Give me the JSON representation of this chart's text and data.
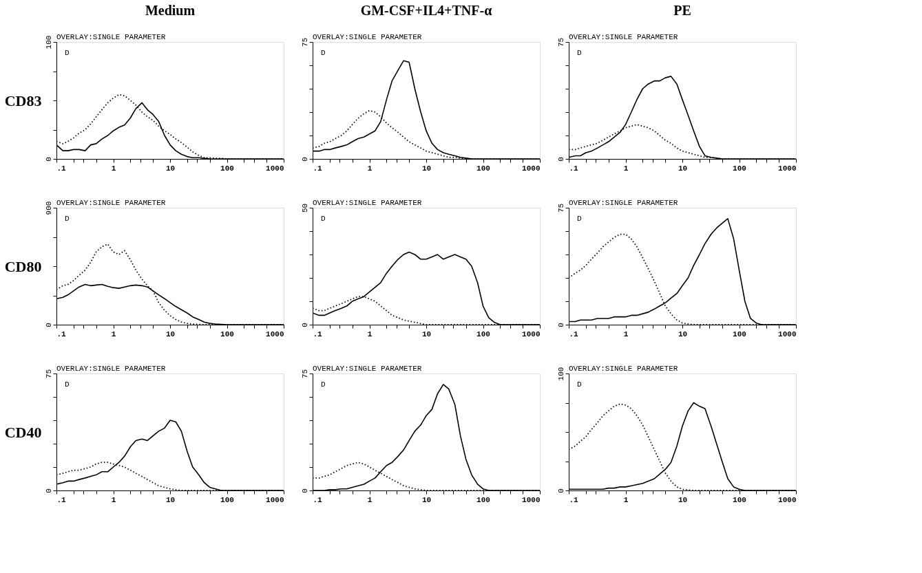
{
  "chart_data": [
    {
      "type": "line",
      "title": "Medium",
      "subtitle": "OVERLAY:SINGLE PARAMETER",
      "ylabel": "CD83",
      "annotations": [
        "D"
      ],
      "log": "x",
      "grid": false,
      "x": [
        0.1,
        0.13,
        0.16,
        0.2,
        0.25,
        0.32,
        0.4,
        0.5,
        0.63,
        0.8,
        1,
        1.26,
        1.58,
        2,
        2.5,
        3.2,
        4,
        5,
        6.3,
        8,
        10,
        12.6,
        15.8,
        20,
        25,
        32,
        40,
        50,
        63,
        80,
        100,
        126,
        158,
        200,
        250,
        320,
        400,
        500,
        630,
        800,
        1000
      ],
      "xlim": [
        0.1,
        1000
      ],
      "xticks": [
        {
          "value": 0.1,
          "label": ".1"
        },
        {
          "value": 0.2,
          "label": null
        },
        {
          "value": 0.3,
          "label": null
        },
        {
          "value": 0.5,
          "label": null
        },
        1,
        {
          "value": 2,
          "label": null
        },
        {
          "value": 3,
          "label": null
        },
        {
          "value": 5,
          "label": null
        },
        10,
        {
          "value": 20,
          "label": null
        },
        {
          "value": 30,
          "label": null
        },
        {
          "value": 50,
          "label": null
        },
        100,
        {
          "value": 200,
          "label": null
        },
        {
          "value": 300,
          "label": null
        },
        {
          "value": 500,
          "label": null
        },
        1000
      ],
      "ylim": [
        0,
        100
      ],
      "yticks": [
        0,
        {
          "value": 25,
          "label": null
        },
        {
          "value": 50,
          "label": null
        },
        {
          "value": 75,
          "label": null
        },
        100
      ],
      "series": [
        {
          "color": "#000000",
          "line_style": "solid",
          "values": [
            12,
            7,
            7,
            8,
            8,
            7,
            12,
            13,
            17,
            20,
            24,
            27,
            29,
            35,
            43,
            48,
            42,
            38,
            32,
            20,
            12,
            7,
            4,
            2,
            1,
            1,
            0.5,
            0,
            0,
            0,
            0,
            0,
            0,
            0,
            0,
            0,
            0,
            0,
            0,
            0,
            0
          ]
        },
        {
          "color": "#000000",
          "line_style": "dotted",
          "values": [
            15,
            13,
            15,
            18,
            22,
            25,
            30,
            36,
            42,
            48,
            52,
            55,
            54,
            50,
            46,
            40,
            36,
            33,
            28,
            24,
            21,
            17,
            14,
            10,
            6,
            3,
            1,
            1,
            0.5,
            0.5,
            0,
            0,
            0,
            0,
            0,
            0,
            0,
            0,
            0,
            0,
            0
          ]
        }
      ]
    },
    {
      "type": "line",
      "title": "GM-CSF+IL4+TNF-α",
      "subtitle": "OVERLAY:SINGLE PARAMETER",
      "annotations": [
        "D"
      ],
      "log": "x",
      "grid": false,
      "x": [
        0.1,
        0.13,
        0.16,
        0.2,
        0.25,
        0.32,
        0.4,
        0.5,
        0.63,
        0.8,
        1,
        1.26,
        1.58,
        2,
        2.5,
        3.2,
        4,
        5,
        6.3,
        8,
        10,
        12.6,
        15.8,
        20,
        25,
        32,
        40,
        50,
        63,
        80,
        100,
        126,
        158,
        200,
        250,
        320,
        400,
        500,
        630,
        800,
        1000
      ],
      "xlim": [
        0.1,
        1000
      ],
      "xticks": [
        {
          "value": 0.1,
          "label": ".1"
        },
        {
          "value": 0.2,
          "label": null
        },
        {
          "value": 0.3,
          "label": null
        },
        {
          "value": 0.5,
          "label": null
        },
        1,
        {
          "value": 2,
          "label": null
        },
        {
          "value": 3,
          "label": null
        },
        {
          "value": 5,
          "label": null
        },
        10,
        {
          "value": 20,
          "label": null
        },
        {
          "value": 30,
          "label": null
        },
        {
          "value": 50,
          "label": null
        },
        100,
        {
          "value": 200,
          "label": null
        },
        {
          "value": 300,
          "label": null
        },
        {
          "value": 500,
          "label": null
        },
        1000
      ],
      "ylim": [
        0,
        75
      ],
      "yticks": [
        0,
        {
          "value": 15,
          "label": null
        },
        {
          "value": 30,
          "label": null
        },
        {
          "value": 45,
          "label": null
        },
        {
          "value": 60,
          "label": null
        },
        75
      ],
      "series": [
        {
          "color": "#000000",
          "line_style": "solid",
          "values": [
            5,
            5,
            6,
            6,
            7,
            8,
            9,
            11,
            13,
            14,
            16,
            18,
            24,
            38,
            50,
            57,
            63,
            62,
            45,
            30,
            18,
            10,
            6,
            4,
            3,
            2,
            1,
            0.5,
            0,
            0,
            0,
            0,
            0,
            0,
            0,
            0,
            0,
            0,
            0,
            0,
            0
          ]
        },
        {
          "color": "#000000",
          "line_style": "dotted",
          "values": [
            7,
            8,
            10,
            11,
            13,
            15,
            18,
            22,
            26,
            29,
            31,
            30,
            27,
            23,
            20,
            17,
            14,
            11,
            9,
            7,
            5,
            4,
            3,
            2,
            1,
            1,
            0.5,
            0,
            0,
            0,
            0,
            0,
            0,
            0,
            0,
            0,
            0,
            0,
            0,
            0,
            0
          ]
        }
      ]
    },
    {
      "type": "line",
      "title": "PE",
      "subtitle": "OVERLAY:SINGLE PARAMETER",
      "annotations": [
        "D"
      ],
      "log": "x",
      "grid": false,
      "x": [
        0.1,
        0.13,
        0.16,
        0.2,
        0.25,
        0.32,
        0.4,
        0.5,
        0.63,
        0.8,
        1,
        1.26,
        1.58,
        2,
        2.5,
        3.2,
        4,
        5,
        6.3,
        8,
        10,
        12.6,
        15.8,
        20,
        25,
        32,
        40,
        50,
        63,
        80,
        100,
        126,
        158,
        200,
        250,
        320,
        400,
        500,
        630,
        800,
        1000
      ],
      "xlim": [
        0.1,
        1000
      ],
      "xticks": [
        {
          "value": 0.1,
          "label": ".1"
        },
        {
          "value": 0.2,
          "label": null
        },
        {
          "value": 0.3,
          "label": null
        },
        {
          "value": 0.5,
          "label": null
        },
        1,
        {
          "value": 2,
          "label": null
        },
        {
          "value": 3,
          "label": null
        },
        {
          "value": 5,
          "label": null
        },
        10,
        {
          "value": 20,
          "label": null
        },
        {
          "value": 30,
          "label": null
        },
        {
          "value": 50,
          "label": null
        },
        100,
        {
          "value": 200,
          "label": null
        },
        {
          "value": 300,
          "label": null
        },
        {
          "value": 500,
          "label": null
        },
        1000
      ],
      "ylim": [
        0,
        75
      ],
      "yticks": [
        0,
        {
          "value": 15,
          "label": null
        },
        {
          "value": 30,
          "label": null
        },
        {
          "value": 45,
          "label": null
        },
        {
          "value": 60,
          "label": null
        },
        75
      ],
      "series": [
        {
          "color": "#000000",
          "line_style": "solid",
          "values": [
            1,
            2,
            2,
            4,
            5,
            7,
            9,
            11,
            14,
            17,
            22,
            30,
            38,
            45,
            48,
            50,
            50,
            52,
            53,
            48,
            38,
            28,
            18,
            8,
            2,
            1,
            0.5,
            0,
            0,
            0,
            0,
            0,
            0,
            0,
            0,
            0,
            0,
            0,
            0,
            0,
            0
          ]
        },
        {
          "color": "#000000",
          "line_style": "dotted",
          "values": [
            6,
            6,
            7,
            8,
            9,
            10,
            12,
            14,
            16,
            18,
            20,
            21,
            22,
            21,
            20,
            18,
            15,
            12,
            10,
            7,
            5,
            4,
            3,
            2,
            1,
            1,
            0.5,
            0,
            0,
            0,
            0,
            0,
            0,
            0,
            0,
            0,
            0,
            0,
            0,
            0,
            0
          ]
        }
      ]
    },
    {
      "type": "line",
      "subtitle": "OVERLAY:SINGLE PARAMETER",
      "ylabel": "CD80",
      "annotations": [
        "D"
      ],
      "log": "x",
      "grid": false,
      "x": [
        0.1,
        0.13,
        0.16,
        0.2,
        0.25,
        0.32,
        0.4,
        0.5,
        0.63,
        0.8,
        1,
        1.26,
        1.58,
        2,
        2.5,
        3.2,
        4,
        5,
        6.3,
        8,
        10,
        12.6,
        15.8,
        20,
        25,
        32,
        40,
        50,
        63,
        80,
        100,
        126,
        158,
        200,
        250,
        320,
        400,
        500,
        630,
        800,
        1000
      ],
      "xlim": [
        0.1,
        1000
      ],
      "xticks": [
        {
          "value": 0.1,
          "label": ".1"
        },
        {
          "value": 0.2,
          "label": null
        },
        {
          "value": 0.3,
          "label": null
        },
        {
          "value": 0.5,
          "label": null
        },
        1,
        {
          "value": 2,
          "label": null
        },
        {
          "value": 3,
          "label": null
        },
        {
          "value": 5,
          "label": null
        },
        10,
        {
          "value": 20,
          "label": null
        },
        {
          "value": 30,
          "label": null
        },
        {
          "value": 50,
          "label": null
        },
        100,
        {
          "value": 200,
          "label": null
        },
        {
          "value": 300,
          "label": null
        },
        {
          "value": 500,
          "label": null
        },
        1000
      ],
      "ylim": [
        0,
        900
      ],
      "yticks": [
        0,
        {
          "value": 225,
          "label": null
        },
        {
          "value": 450,
          "label": null
        },
        {
          "value": 675,
          "label": null
        },
        900
      ],
      "series": [
        {
          "color": "#000000",
          "line_style": "solid",
          "values": [
            200,
            210,
            230,
            260,
            290,
            310,
            300,
            305,
            310,
            295,
            285,
            280,
            290,
            300,
            305,
            300,
            290,
            260,
            230,
            200,
            170,
            140,
            115,
            90,
            60,
            40,
            20,
            10,
            5,
            2,
            0,
            0,
            0,
            0,
            0,
            0,
            0,
            0,
            0,
            0,
            0
          ]
        },
        {
          "color": "#000000",
          "line_style": "dotted",
          "values": [
            270,
            300,
            310,
            340,
            380,
            420,
            480,
            560,
            600,
            620,
            560,
            540,
            570,
            500,
            420,
            350,
            300,
            260,
            170,
            110,
            70,
            40,
            20,
            10,
            5,
            2,
            0,
            0,
            0,
            0,
            0,
            0,
            0,
            0,
            0,
            0,
            0,
            0,
            0,
            0,
            0
          ]
        }
      ]
    },
    {
      "type": "line",
      "subtitle": "OVERLAY:SINGLE PARAMETER",
      "annotations": [
        "D"
      ],
      "log": "x",
      "grid": false,
      "x": [
        0.1,
        0.13,
        0.16,
        0.2,
        0.25,
        0.32,
        0.4,
        0.5,
        0.63,
        0.8,
        1,
        1.26,
        1.58,
        2,
        2.5,
        3.2,
        4,
        5,
        6.3,
        8,
        10,
        12.6,
        15.8,
        20,
        25,
        32,
        40,
        50,
        63,
        80,
        100,
        126,
        158,
        200,
        250,
        320,
        400,
        500,
        630,
        800,
        1000
      ],
      "xlim": [
        0.1,
        1000
      ],
      "xticks": [
        {
          "value": 0.1,
          "label": ".1"
        },
        {
          "value": 0.2,
          "label": null
        },
        {
          "value": 0.3,
          "label": null
        },
        {
          "value": 0.5,
          "label": null
        },
        1,
        {
          "value": 2,
          "label": null
        },
        {
          "value": 3,
          "label": null
        },
        {
          "value": 5,
          "label": null
        },
        10,
        {
          "value": 20,
          "label": null
        },
        {
          "value": 30,
          "label": null
        },
        {
          "value": 50,
          "label": null
        },
        100,
        {
          "value": 200,
          "label": null
        },
        {
          "value": 300,
          "label": null
        },
        {
          "value": 500,
          "label": null
        },
        1000
      ],
      "ylim": [
        0,
        50
      ],
      "yticks": [
        0,
        {
          "value": 10,
          "label": null
        },
        {
          "value": 20,
          "label": null
        },
        {
          "value": 30,
          "label": null
        },
        {
          "value": 40,
          "label": null
        },
        50
      ],
      "series": [
        {
          "color": "#000000",
          "line_style": "solid",
          "values": [
            5,
            4,
            4,
            5,
            6,
            7,
            8,
            10,
            11,
            12,
            14,
            16,
            18,
            22,
            25,
            28,
            30,
            31,
            30,
            28,
            28,
            29,
            30,
            28,
            29,
            30,
            29,
            28,
            25,
            18,
            8,
            3,
            1,
            0,
            0,
            0,
            0,
            0,
            0,
            0,
            0
          ]
        },
        {
          "color": "#000000",
          "line_style": "dotted",
          "values": [
            7,
            6,
            6,
            7,
            8,
            9,
            10,
            11,
            12,
            12,
            11,
            10,
            8,
            6,
            4,
            3,
            2,
            1.5,
            1,
            0.5,
            0,
            0,
            0,
            0,
            0,
            0,
            0,
            0,
            0,
            0,
            0,
            0,
            0,
            0,
            0,
            0,
            0,
            0,
            0,
            0,
            0
          ]
        }
      ]
    },
    {
      "type": "line",
      "subtitle": "OVERLAY:SINGLE PARAMETER",
      "annotations": [
        "D"
      ],
      "log": "x",
      "grid": false,
      "x": [
        0.1,
        0.13,
        0.16,
        0.2,
        0.25,
        0.32,
        0.4,
        0.5,
        0.63,
        0.8,
        1,
        1.26,
        1.58,
        2,
        2.5,
        3.2,
        4,
        5,
        6.3,
        8,
        10,
        12.6,
        15.8,
        20,
        25,
        32,
        40,
        50,
        63,
        80,
        100,
        126,
        158,
        200,
        250,
        320,
        400,
        500,
        630,
        800,
        1000
      ],
      "xlim": [
        0.1,
        1000
      ],
      "xticks": [
        {
          "value": 0.1,
          "label": ".1"
        },
        {
          "value": 0.2,
          "label": null
        },
        {
          "value": 0.3,
          "label": null
        },
        {
          "value": 0.5,
          "label": null
        },
        1,
        {
          "value": 2,
          "label": null
        },
        {
          "value": 3,
          "label": null
        },
        {
          "value": 5,
          "label": null
        },
        10,
        {
          "value": 20,
          "label": null
        },
        {
          "value": 30,
          "label": null
        },
        {
          "value": 50,
          "label": null
        },
        100,
        {
          "value": 200,
          "label": null
        },
        {
          "value": 300,
          "label": null
        },
        {
          "value": 500,
          "label": null
        },
        1000
      ],
      "ylim": [
        0,
        75
      ],
      "yticks": [
        0,
        {
          "value": 15,
          "label": null
        },
        {
          "value": 30,
          "label": null
        },
        {
          "value": 45,
          "label": null
        },
        {
          "value": 60,
          "label": null
        },
        75
      ],
      "series": [
        {
          "color": "#000000",
          "line_style": "solid",
          "values": [
            2,
            2,
            3,
            3,
            3,
            4,
            4,
            4,
            5,
            5,
            5,
            6,
            6,
            7,
            8,
            10,
            12,
            14,
            17,
            20,
            25,
            30,
            38,
            45,
            52,
            58,
            62,
            65,
            68,
            55,
            35,
            15,
            4,
            1,
            0,
            0,
            0,
            0,
            0,
            0,
            0
          ]
        },
        {
          "color": "#000000",
          "line_style": "dotted",
          "values": [
            30,
            33,
            35,
            38,
            42,
            46,
            50,
            53,
            56,
            58,
            58,
            55,
            50,
            43,
            36,
            28,
            20,
            12,
            7,
            3,
            1,
            0.5,
            0,
            0,
            0,
            0,
            0,
            0,
            0,
            0,
            0,
            0,
            0,
            0,
            0,
            0,
            0,
            0,
            0,
            0,
            0
          ]
        }
      ]
    },
    {
      "type": "line",
      "subtitle": "OVERLAY:SINGLE PARAMETER",
      "ylabel": "CD40",
      "annotations": [
        "D"
      ],
      "log": "x",
      "grid": false,
      "x": [
        0.1,
        0.13,
        0.16,
        0.2,
        0.25,
        0.32,
        0.4,
        0.5,
        0.63,
        0.8,
        1,
        1.26,
        1.58,
        2,
        2.5,
        3.2,
        4,
        5,
        6.3,
        8,
        10,
        12.6,
        15.8,
        20,
        25,
        32,
        40,
        50,
        63,
        80,
        100,
        126,
        158,
        200,
        250,
        320,
        400,
        500,
        630,
        800,
        1000
      ],
      "xlim": [
        0.1,
        1000
      ],
      "xticks": [
        {
          "value": 0.1,
          "label": ".1"
        },
        {
          "value": 0.2,
          "label": null
        },
        {
          "value": 0.3,
          "label": null
        },
        {
          "value": 0.5,
          "label": null
        },
        1,
        {
          "value": 2,
          "label": null
        },
        {
          "value": 3,
          "label": null
        },
        {
          "value": 5,
          "label": null
        },
        10,
        {
          "value": 20,
          "label": null
        },
        {
          "value": 30,
          "label": null
        },
        {
          "value": 50,
          "label": null
        },
        100,
        {
          "value": 200,
          "label": null
        },
        {
          "value": 300,
          "label": null
        },
        {
          "value": 500,
          "label": null
        },
        1000
      ],
      "ylim": [
        0,
        75
      ],
      "yticks": [
        0,
        {
          "value": 15,
          "label": null
        },
        {
          "value": 30,
          "label": null
        },
        {
          "value": 45,
          "label": null
        },
        {
          "value": 60,
          "label": null
        },
        75
      ],
      "series": [
        {
          "color": "#000000",
          "line_style": "solid",
          "values": [
            4,
            5,
            6,
            6,
            7,
            8,
            9,
            10,
            12,
            12,
            15,
            18,
            22,
            28,
            32,
            33,
            32,
            35,
            38,
            40,
            45,
            44,
            38,
            25,
            15,
            10,
            5,
            2,
            1,
            0,
            0,
            0,
            0,
            0,
            0,
            0,
            0,
            0,
            0,
            0,
            0
          ]
        },
        {
          "color": "#000000",
          "line_style": "dotted",
          "values": [
            10,
            11,
            12,
            13,
            13,
            14,
            15,
            17,
            18,
            18,
            17,
            16,
            15,
            13,
            11,
            9,
            7,
            5,
            3,
            2,
            1,
            0.5,
            0,
            0,
            0,
            0,
            0,
            0,
            0,
            0,
            0,
            0,
            0,
            0,
            0,
            0,
            0,
            0,
            0,
            0,
            0
          ]
        }
      ]
    },
    {
      "type": "line",
      "subtitle": "OVERLAY:SINGLE PARAMETER",
      "annotations": [
        "D"
      ],
      "log": "x",
      "grid": false,
      "x": [
        0.1,
        0.13,
        0.16,
        0.2,
        0.25,
        0.32,
        0.4,
        0.5,
        0.63,
        0.8,
        1,
        1.26,
        1.58,
        2,
        2.5,
        3.2,
        4,
        5,
        6.3,
        8,
        10,
        12.6,
        15.8,
        20,
        25,
        32,
        40,
        50,
        63,
        80,
        100,
        126,
        158,
        200,
        250,
        320,
        400,
        500,
        630,
        800,
        1000
      ],
      "xlim": [
        0.1,
        1000
      ],
      "xticks": [
        {
          "value": 0.1,
          "label": ".1"
        },
        {
          "value": 0.2,
          "label": null
        },
        {
          "value": 0.3,
          "label": null
        },
        {
          "value": 0.5,
          "label": null
        },
        1,
        {
          "value": 2,
          "label": null
        },
        {
          "value": 3,
          "label": null
        },
        {
          "value": 5,
          "label": null
        },
        10,
        {
          "value": 20,
          "label": null
        },
        {
          "value": 30,
          "label": null
        },
        {
          "value": 50,
          "label": null
        },
        100,
        {
          "value": 200,
          "label": null
        },
        {
          "value": 300,
          "label": null
        },
        {
          "value": 500,
          "label": null
        },
        1000
      ],
      "ylim": [
        0,
        75
      ],
      "yticks": [
        0,
        {
          "value": 15,
          "label": null
        },
        {
          "value": 30,
          "label": null
        },
        {
          "value": 45,
          "label": null
        },
        {
          "value": 60,
          "label": null
        },
        75
      ],
      "series": [
        {
          "color": "#000000",
          "line_style": "solid",
          "values": [
            0,
            0,
            0,
            0.5,
            0.5,
            1,
            1,
            2,
            3,
            4,
            6,
            8,
            12,
            16,
            18,
            22,
            26,
            32,
            38,
            42,
            48,
            52,
            62,
            68,
            65,
            55,
            35,
            20,
            10,
            4,
            1,
            0,
            0,
            0,
            0,
            0,
            0,
            0,
            0,
            0,
            0
          ]
        },
        {
          "color": "#000000",
          "line_style": "dotted",
          "values": [
            8,
            8,
            9,
            10,
            12,
            14,
            16,
            17,
            18,
            17,
            15,
            13,
            11,
            9,
            7,
            5,
            3,
            2,
            1,
            0.5,
            0,
            0,
            0,
            0,
            0,
            0,
            0,
            0,
            0,
            0,
            0,
            0,
            0,
            0,
            0,
            0,
            0,
            0,
            0,
            0,
            0
          ]
        }
      ]
    },
    {
      "type": "line",
      "subtitle": "OVERLAY:SINGLE PARAMETER",
      "annotations": [
        "D"
      ],
      "log": "x",
      "grid": false,
      "x": [
        0.1,
        0.13,
        0.16,
        0.2,
        0.25,
        0.32,
        0.4,
        0.5,
        0.63,
        0.8,
        1,
        1.26,
        1.58,
        2,
        2.5,
        3.2,
        4,
        5,
        6.3,
        8,
        10,
        12.6,
        15.8,
        20,
        25,
        32,
        40,
        50,
        63,
        80,
        100,
        126,
        158,
        200,
        250,
        320,
        400,
        500,
        630,
        800,
        1000
      ],
      "xlim": [
        0.1,
        1000
      ],
      "xticks": [
        {
          "value": 0.1,
          "label": ".1"
        },
        {
          "value": 0.2,
          "label": null
        },
        {
          "value": 0.3,
          "label": null
        },
        {
          "value": 0.5,
          "label": null
        },
        1,
        {
          "value": 2,
          "label": null
        },
        {
          "value": 3,
          "label": null
        },
        {
          "value": 5,
          "label": null
        },
        10,
        {
          "value": 20,
          "label": null
        },
        {
          "value": 30,
          "label": null
        },
        {
          "value": 50,
          "label": null
        },
        100,
        {
          "value": 200,
          "label": null
        },
        {
          "value": 300,
          "label": null
        },
        {
          "value": 500,
          "label": null
        },
        1000
      ],
      "ylim": [
        0,
        100
      ],
      "yticks": [
        0,
        {
          "value": 25,
          "label": null
        },
        {
          "value": 50,
          "label": null
        },
        {
          "value": 75,
          "label": null
        },
        100
      ],
      "series": [
        {
          "color": "#000000",
          "line_style": "solid",
          "values": [
            1,
            1,
            1,
            1,
            1,
            1,
            1,
            2,
            2,
            3,
            3,
            4,
            5,
            6,
            8,
            10,
            14,
            18,
            24,
            38,
            55,
            68,
            75,
            72,
            70,
            55,
            40,
            25,
            10,
            3,
            1,
            0,
            0,
            0,
            0,
            0,
            0,
            0,
            0,
            0,
            0
          ]
        },
        {
          "color": "#000000",
          "line_style": "dotted",
          "values": [
            35,
            38,
            42,
            46,
            52,
            58,
            64,
            68,
            72,
            74,
            73,
            70,
            64,
            56,
            46,
            35,
            25,
            15,
            8,
            3,
            1,
            0.5,
            0,
            0,
            0,
            0,
            0,
            0,
            0,
            0,
            0,
            0,
            0,
            0,
            0,
            0,
            0,
            0,
            0,
            0,
            0
          ]
        }
      ]
    }
  ]
}
